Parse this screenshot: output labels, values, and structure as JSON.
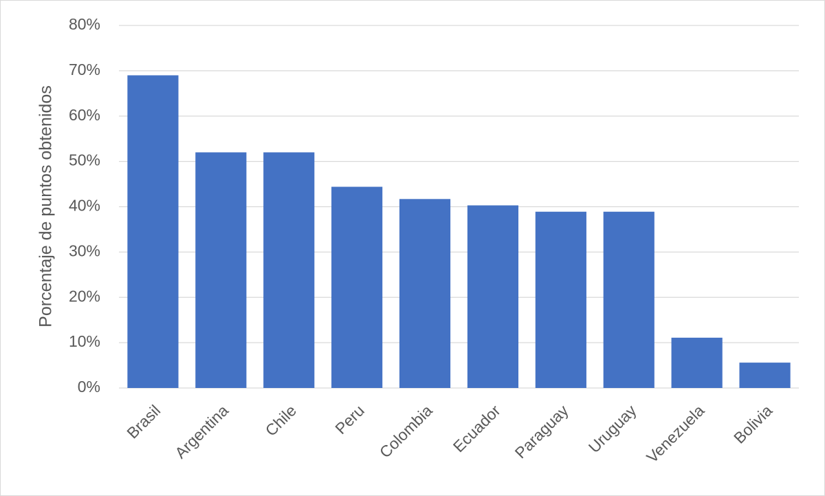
{
  "chart_data": {
    "type": "bar",
    "y_axis_label": "Porcentaje de puntos obtenidos",
    "categories": [
      "Brasil",
      "Argentina",
      "Chile",
      "Peru",
      "Colombia",
      "Ecuador",
      "Paraguay",
      "Uruguay",
      "Venezuela",
      "Bolivia"
    ],
    "values": [
      69,
      52,
      52,
      44.4,
      41.7,
      40.3,
      38.9,
      38.9,
      11.1,
      5.6
    ],
    "color": "#4472c4",
    "ylim": [
      0,
      80
    ],
    "yticks": [
      {
        "value": 0,
        "label": "0%"
      },
      {
        "value": 10,
        "label": "10%"
      },
      {
        "value": 20,
        "label": "20%"
      },
      {
        "value": 30,
        "label": "30%"
      },
      {
        "value": 40,
        "label": "40%"
      },
      {
        "value": 50,
        "label": "50%"
      },
      {
        "value": 60,
        "label": "60%"
      },
      {
        "value": 70,
        "label": "70%"
      },
      {
        "value": 80,
        "label": "80%"
      }
    ],
    "grid": true
  }
}
